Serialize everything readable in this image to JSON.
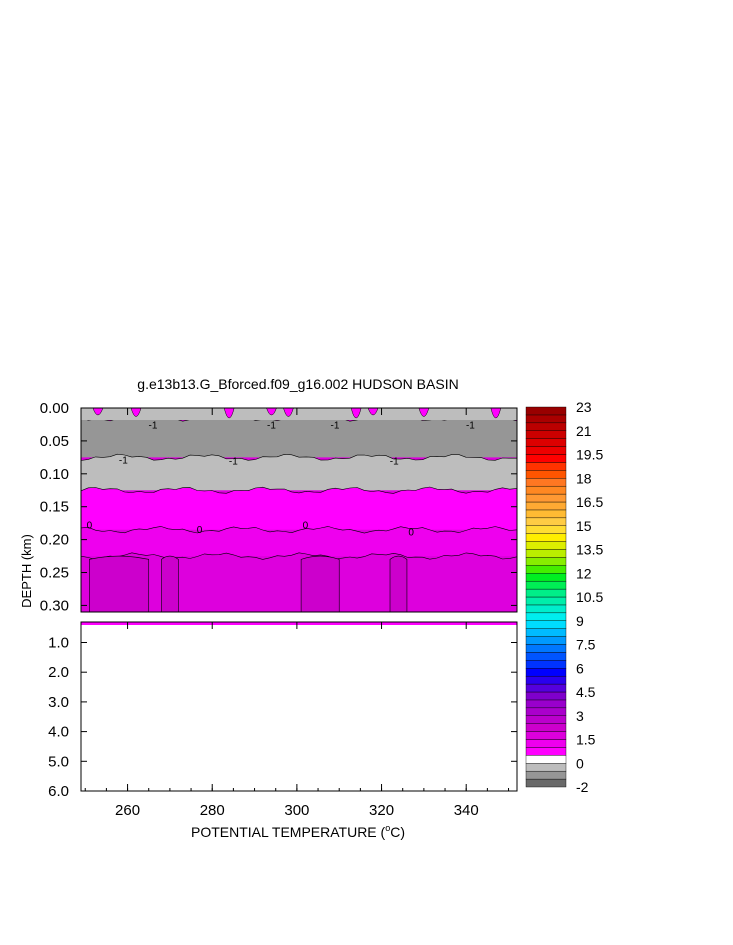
{
  "chart_data": {
    "type": "heatmap",
    "title": "g.e13b13.G_Bforced.f09_g16.002 HUDSON BASIN",
    "xlabel": "POTENTIAL TEMPERATURE (",
    "xlabel_unit": "C)",
    "xlabel_degree": "o",
    "ylabel": "DEPTH (km)",
    "x_ticks": [
      "260",
      "280",
      "300",
      "320",
      "340"
    ],
    "x_tick_values": [
      260,
      280,
      300,
      320,
      340
    ],
    "xlim": [
      249,
      352
    ],
    "upper_panel": {
      "ylim": [
        0.0,
        0.31
      ],
      "y_ticks": [
        "0.00",
        "0.05",
        "0.10",
        "0.15",
        "0.20",
        "0.25",
        "0.30"
      ],
      "y_tick_values": [
        0.0,
        0.05,
        0.1,
        0.15,
        0.2,
        0.25,
        0.3
      ]
    },
    "lower_panel": {
      "ylim": [
        0.31,
        6.0
      ],
      "y_ticks": [
        "1.0",
        "2.0",
        "3.0",
        "4.0",
        "5.0",
        "6.0"
      ],
      "y_tick_values": [
        1.0,
        2.0,
        3.0,
        4.0,
        5.0,
        6.0
      ]
    },
    "layers": [
      {
        "value": -1.5,
        "color": "#969696",
        "depth_top": 0.015,
        "depth_bottom": 0.075
      },
      {
        "value": -0.5,
        "color": "#bdbdbd",
        "depth_top": 0.075,
        "depth_bottom": 0.125
      },
      {
        "value": 0.25,
        "color": "#ff00ff",
        "depth_top": 0.125,
        "depth_bottom": 0.185
      },
      {
        "value": 0.5,
        "color": "#ee00ee",
        "depth_top": 0.185,
        "depth_bottom": 0.225
      },
      {
        "value": 0.75,
        "color": "#dd00dd",
        "depth_top": 0.225,
        "depth_bottom": 0.31
      }
    ],
    "contour_labels": [
      {
        "text": "-1",
        "x": 266,
        "depth": 0.025
      },
      {
        "text": "-1",
        "x": 294,
        "depth": 0.025
      },
      {
        "text": "-1",
        "x": 309,
        "depth": 0.025
      },
      {
        "text": "-1",
        "x": 341,
        "depth": 0.025
      },
      {
        "text": "-1",
        "x": 259,
        "depth": 0.078
      },
      {
        "text": "-1",
        "x": 285,
        "depth": 0.08
      },
      {
        "text": "-1",
        "x": 323,
        "depth": 0.08
      },
      {
        "text": "0",
        "x": 251,
        "depth": 0.177
      },
      {
        "text": "0",
        "x": 277,
        "depth": 0.184
      },
      {
        "text": "0",
        "x": 302,
        "depth": 0.177
      },
      {
        "text": "0",
        "x": 327,
        "depth": 0.188
      }
    ],
    "colorbar": {
      "labels": [
        "23",
        "21",
        "19.5",
        "18",
        "16.5",
        "15",
        "13.5",
        "12",
        "10.5",
        "9",
        "7.5",
        "6",
        "4.5",
        "3",
        "1.5",
        "0",
        "-2"
      ],
      "colors": [
        "#696969",
        "#969696",
        "#bdbdbd",
        "#ffffff",
        "#ff00ff",
        "#ee00ee",
        "#dd00dd",
        "#cc00cc",
        "#bb00cc",
        "#aa00cc",
        "#9900cc",
        "#7f00cc",
        "#5500dd",
        "#2a00ee",
        "#0000ff",
        "#0033ff",
        "#0055ff",
        "#0077ff",
        "#0099ff",
        "#00bbff",
        "#00ddff",
        "#00eeee",
        "#00eecc",
        "#00eeaa",
        "#00ee88",
        "#00ee55",
        "#00ee22",
        "#44ee00",
        "#88ee00",
        "#bbee00",
        "#ddee00",
        "#ffee00",
        "#ffdd33",
        "#ffcc44",
        "#ffbb33",
        "#ffaa33",
        "#ff9933",
        "#ff8822",
        "#ff7722",
        "#ff5500",
        "#ff3300",
        "#ff0000",
        "#ee0000",
        "#dd0000",
        "#cc0000",
        "#bb0000",
        "#aa0000",
        "#990000"
      ]
    }
  }
}
